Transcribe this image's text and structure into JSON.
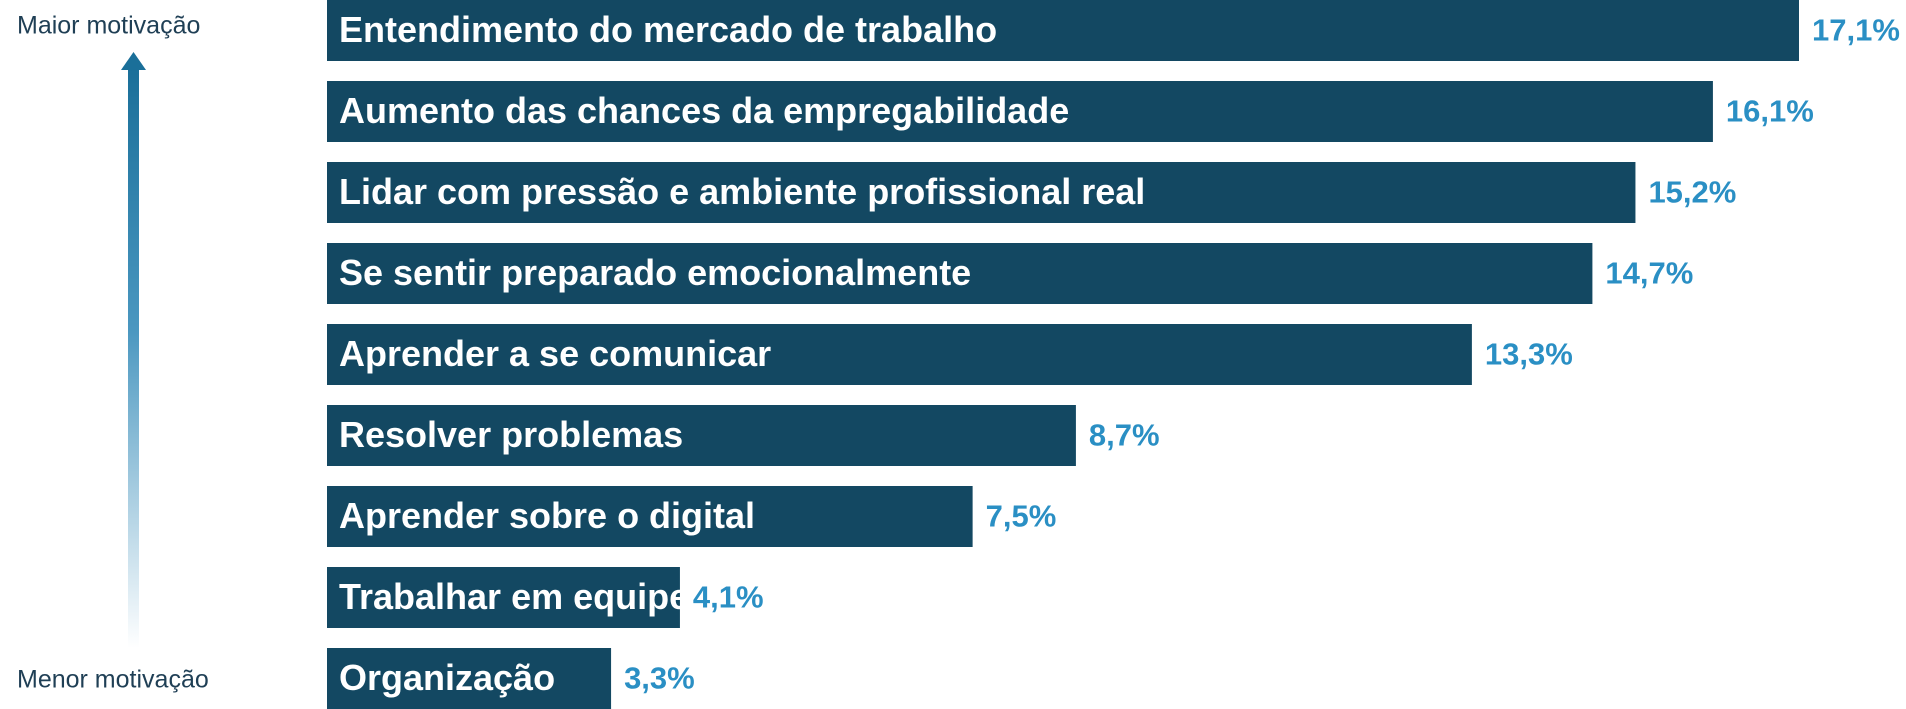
{
  "chart_data": {
    "type": "bar",
    "orientation": "horizontal",
    "annotations": [
      "Maior motivação",
      "Menor motivação"
    ],
    "categories": [
      "Entendimento do mercado de trabalho",
      "Aumento das chances da empregabilidade",
      "Lidar com pressão e ambiente profissional real",
      "Se sentir preparado emocionalmente",
      "Aprender a se comunicar",
      "Resolver problemas",
      "Aprender sobre o digital",
      "Trabalhar em equipe",
      "Organização"
    ],
    "values": [
      17.1,
      16.1,
      15.2,
      14.7,
      13.3,
      8.7,
      7.5,
      4.1,
      3.3
    ],
    "value_labels": [
      "17,1%",
      "16,1%",
      "15,2%",
      "14,7%",
      "13,3%",
      "8,7%",
      "7,5%",
      "4,1%",
      "3,3%"
    ],
    "color": "#134862",
    "label_color": "#2a8fc4"
  }
}
